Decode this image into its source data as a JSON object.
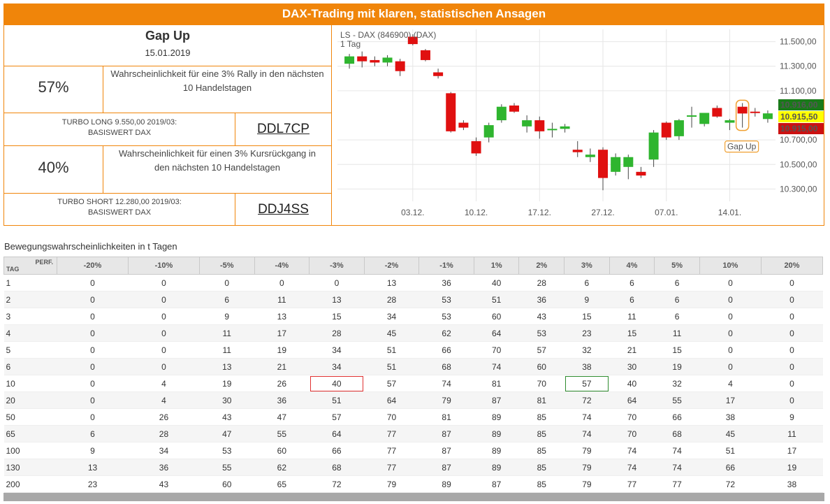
{
  "banner": "DAX-Trading mit klaren, statistischen Ansagen",
  "panel": {
    "title": "Gap Up",
    "date": "15.01.2019",
    "long": {
      "pct": "57%",
      "desc_line1": "Wahrscheinlichkeit für eine 3% Rally in den nächsten",
      "desc_line2": "10 Handelstagen",
      "product_line1": "TURBO LONG 9.550,00 2019/03:",
      "product_line2": "BASISWERT DAX",
      "code": "DDL7CP"
    },
    "short": {
      "pct": "40%",
      "desc_line1": "Wahrscheinlichkeit für einen 3% Kursrückgang in",
      "desc_line2": "den nächsten 10 Handelstagen",
      "product_line1": "TURBO SHORT 12.280,00 2019/03:",
      "product_line2": "BASISWERT DAX",
      "code": "DDJ4SS"
    }
  },
  "chart_data": {
    "type": "candlestick",
    "title": "LS - DAX (846900) (DAX)",
    "subtitle": "1 Tag",
    "ylim": [
      10200,
      11600
    ],
    "yticks": [
      "11.500,00",
      "11.300,00",
      "11.100,00",
      "10.700,00",
      "10.500,00",
      "10.300,00"
    ],
    "ytick_values": [
      11500,
      11300,
      11100,
      10700,
      10500,
      10300
    ],
    "xticks": [
      "03.12.",
      "10.12.",
      "17.12.",
      "27.12.",
      "07.01.",
      "14.01."
    ],
    "xtick_index": [
      5,
      10,
      15,
      20,
      25,
      30
    ],
    "price_labels": [
      {
        "text": "10.916,00",
        "value": 10916,
        "color": "#1a7a1a",
        "text_color": "#ffffff"
      },
      {
        "text": "10.915,50",
        "value": 10915.5,
        "color": "#ffff00",
        "text_color": "#222222"
      },
      {
        "text": "10.915,00",
        "value": 10915,
        "color": "#cc1111",
        "text_color": "#ffffff"
      }
    ],
    "annotation": {
      "text": "Gap Up",
      "index": 31
    },
    "candles": [
      {
        "o": 11320,
        "h": 11400,
        "l": 11280,
        "c": 11380
      },
      {
        "o": 11380,
        "h": 11420,
        "l": 11290,
        "c": 11340
      },
      {
        "o": 11350,
        "h": 11380,
        "l": 11300,
        "c": 11330
      },
      {
        "o": 11330,
        "h": 11390,
        "l": 11300,
        "c": 11370
      },
      {
        "o": 11340,
        "h": 11360,
        "l": 11220,
        "c": 11260
      },
      {
        "o": 11540,
        "h": 11560,
        "l": 11470,
        "c": 11480
      },
      {
        "o": 11430,
        "h": 11440,
        "l": 11340,
        "c": 11350
      },
      {
        "o": 11250,
        "h": 11280,
        "l": 11200,
        "c": 11220
      },
      {
        "o": 11080,
        "h": 11090,
        "l": 10760,
        "c": 10770
      },
      {
        "o": 10840,
        "h": 10860,
        "l": 10780,
        "c": 10800
      },
      {
        "o": 10690,
        "h": 10720,
        "l": 10570,
        "c": 10590
      },
      {
        "o": 10720,
        "h": 10840,
        "l": 10680,
        "c": 10820
      },
      {
        "o": 10860,
        "h": 10990,
        "l": 10840,
        "c": 10970
      },
      {
        "o": 10980,
        "h": 11000,
        "l": 10920,
        "c": 10930
      },
      {
        "o": 10810,
        "h": 10900,
        "l": 10760,
        "c": 10860
      },
      {
        "o": 10860,
        "h": 10890,
        "l": 10710,
        "c": 10770
      },
      {
        "o": 10780,
        "h": 10840,
        "l": 10720,
        "c": 10790
      },
      {
        "o": 10790,
        "h": 10830,
        "l": 10760,
        "c": 10810
      },
      {
        "o": 10620,
        "h": 10690,
        "l": 10560,
        "c": 10600
      },
      {
        "o": 10560,
        "h": 10630,
        "l": 10520,
        "c": 10580
      },
      {
        "o": 10620,
        "h": 10640,
        "l": 10290,
        "c": 10390
      },
      {
        "o": 10440,
        "h": 10590,
        "l": 10410,
        "c": 10560
      },
      {
        "o": 10480,
        "h": 10580,
        "l": 10380,
        "c": 10560
      },
      {
        "o": 10440,
        "h": 10480,
        "l": 10390,
        "c": 10410
      },
      {
        "o": 10540,
        "h": 10780,
        "l": 10480,
        "c": 10760
      },
      {
        "o": 10840,
        "h": 10850,
        "l": 10700,
        "c": 10720
      },
      {
        "o": 10730,
        "h": 10870,
        "l": 10700,
        "c": 10860
      },
      {
        "o": 10890,
        "h": 10970,
        "l": 10800,
        "c": 10900
      },
      {
        "o": 10830,
        "h": 10920,
        "l": 10810,
        "c": 10920
      },
      {
        "o": 10960,
        "h": 10980,
        "l": 10880,
        "c": 10890
      },
      {
        "o": 10840,
        "h": 10870,
        "l": 10780,
        "c": 10860
      },
      {
        "o": 10970,
        "h": 11000,
        "l": 10800,
        "c": 10915
      },
      {
        "o": 10930,
        "h": 10960,
        "l": 10890,
        "c": 10925
      },
      {
        "o": 10870,
        "h": 10940,
        "l": 10840,
        "c": 10916
      }
    ]
  },
  "table": {
    "caption": "Bewegungswahrscheinlichkeiten in t Tagen",
    "corner_top": "PERF.",
    "corner_bottom": "TAG",
    "columns": [
      "-20%",
      "-10%",
      "-5%",
      "-4%",
      "-3%",
      "-2%",
      "-1%",
      "1%",
      "2%",
      "3%",
      "4%",
      "5%",
      "10%",
      "20%"
    ],
    "rows": [
      {
        "tag": "1",
        "values": [
          "0",
          "0",
          "0",
          "0",
          "0",
          "13",
          "36",
          "40",
          "28",
          "6",
          "6",
          "6",
          "0",
          "0"
        ]
      },
      {
        "tag": "2",
        "values": [
          "0",
          "0",
          "6",
          "11",
          "13",
          "28",
          "53",
          "51",
          "36",
          "9",
          "6",
          "6",
          "0",
          "0"
        ]
      },
      {
        "tag": "3",
        "values": [
          "0",
          "0",
          "9",
          "13",
          "15",
          "34",
          "53",
          "60",
          "43",
          "15",
          "11",
          "6",
          "0",
          "0"
        ]
      },
      {
        "tag": "4",
        "values": [
          "0",
          "0",
          "11",
          "17",
          "28",
          "45",
          "62",
          "64",
          "53",
          "23",
          "15",
          "11",
          "0",
          "0"
        ]
      },
      {
        "tag": "5",
        "values": [
          "0",
          "0",
          "11",
          "19",
          "34",
          "51",
          "66",
          "70",
          "57",
          "32",
          "21",
          "15",
          "0",
          "0"
        ]
      },
      {
        "tag": "6",
        "values": [
          "0",
          "0",
          "13",
          "21",
          "34",
          "51",
          "68",
          "74",
          "60",
          "38",
          "30",
          "19",
          "0",
          "0"
        ]
      },
      {
        "tag": "10",
        "values": [
          "0",
          "4",
          "19",
          "26",
          "40",
          "57",
          "74",
          "81",
          "70",
          "57",
          "40",
          "32",
          "4",
          "0"
        ]
      },
      {
        "tag": "20",
        "values": [
          "0",
          "4",
          "30",
          "36",
          "51",
          "64",
          "79",
          "87",
          "81",
          "72",
          "64",
          "55",
          "17",
          "0"
        ]
      },
      {
        "tag": "50",
        "values": [
          "0",
          "26",
          "43",
          "47",
          "57",
          "70",
          "81",
          "89",
          "85",
          "74",
          "70",
          "66",
          "38",
          "9"
        ]
      },
      {
        "tag": "65",
        "values": [
          "6",
          "28",
          "47",
          "55",
          "64",
          "77",
          "87",
          "89",
          "85",
          "74",
          "70",
          "68",
          "45",
          "11"
        ]
      },
      {
        "tag": "100",
        "values": [
          "9",
          "34",
          "53",
          "60",
          "66",
          "77",
          "87",
          "89",
          "85",
          "79",
          "74",
          "74",
          "51",
          "17"
        ]
      },
      {
        "tag": "130",
        "values": [
          "13",
          "36",
          "55",
          "62",
          "68",
          "77",
          "87",
          "89",
          "85",
          "79",
          "74",
          "74",
          "66",
          "19"
        ]
      },
      {
        "tag": "200",
        "values": [
          "23",
          "43",
          "60",
          "65",
          "72",
          "79",
          "89",
          "87",
          "85",
          "79",
          "77",
          "77",
          "72",
          "38"
        ]
      }
    ]
  }
}
